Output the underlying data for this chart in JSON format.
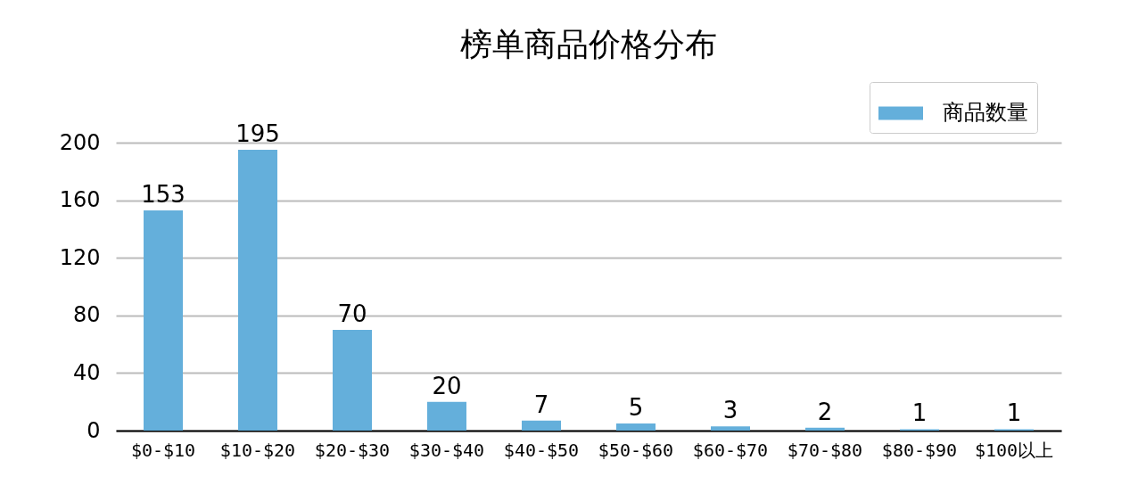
{
  "chart_data": {
    "type": "bar",
    "title": "榜单商品价格分布",
    "categories": [
      "$0-$10",
      "$10-$20",
      "$20-$30",
      "$30-$40",
      "$40-$50",
      "$50-$60",
      "$60-$70",
      "$70-$80",
      "$80-$90",
      "$100以上"
    ],
    "series": [
      {
        "name": "商品数量",
        "color": "#64afdb",
        "values": [
          153,
          195,
          70,
          20,
          7,
          5,
          3,
          2,
          1,
          1
        ]
      }
    ],
    "ylim": [
      0,
      200
    ],
    "yticks": [
      0,
      40,
      80,
      120,
      160,
      200
    ],
    "grid": "y",
    "legend": "top right",
    "data_labels": true
  }
}
